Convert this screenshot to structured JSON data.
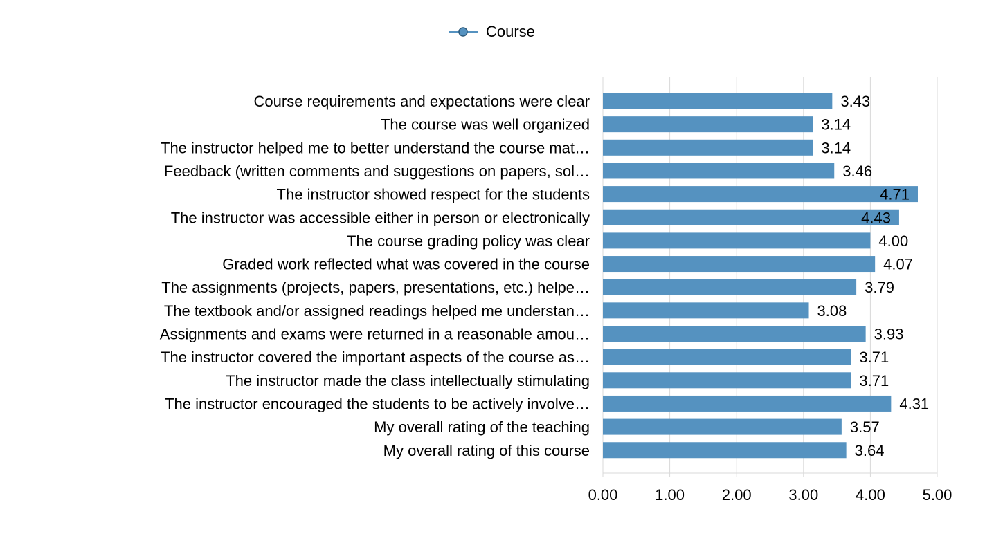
{
  "chart_data": {
    "type": "bar",
    "orientation": "horizontal",
    "title": "",
    "xlabel": "",
    "ylabel": "",
    "legend": {
      "placement": "top-center"
    },
    "categories": [
      "Course requirements and expectations were clear",
      "The course was well organized",
      "The instructor helped me to better understand the course mat…",
      "Feedback (written comments and suggestions on papers, sol…",
      "The instructor showed respect for the students",
      "The instructor was accessible either in person or electronically",
      "The course grading policy was clear",
      "Graded work reflected what was covered in the course",
      "The assignments (projects, papers, presentations, etc.) helpe…",
      "The textbook and/or assigned readings helped me understan…",
      "Assignments and exams were returned in a reasonable amou…",
      "The instructor covered the important aspects of the course as…",
      "The instructor made the class intellectually stimulating",
      "The instructor encouraged the students to be actively involve…",
      "My overall rating of the teaching",
      "My overall rating of this course"
    ],
    "series": [
      {
        "name": "Course",
        "color": "#5592c0",
        "values": [
          3.43,
          3.14,
          3.14,
          3.46,
          4.71,
          4.43,
          4.0,
          4.07,
          3.79,
          3.08,
          3.93,
          3.71,
          3.71,
          4.31,
          3.57,
          3.64
        ],
        "value_labels": [
          "3.43",
          "3.14",
          "3.14",
          "3.46",
          "4.71",
          "4.43",
          "4.00",
          "4.07",
          "3.79",
          "3.08",
          "3.93",
          "3.71",
          "3.71",
          "4.31",
          "3.57",
          "3.64"
        ]
      }
    ],
    "x_axis": {
      "range": [
        0,
        5
      ],
      "ticks": [
        0,
        1,
        2,
        3,
        4,
        5
      ],
      "tick_labels": [
        "0.00",
        "1.00",
        "2.00",
        "3.00",
        "4.00",
        "5.00"
      ]
    },
    "grid": true,
    "colors": {
      "bar": "#5592c0",
      "legend_marker": "#5592c0",
      "grid": "#d9d9d9",
      "axis": "#d9d9d9",
      "text": "#000000"
    }
  }
}
